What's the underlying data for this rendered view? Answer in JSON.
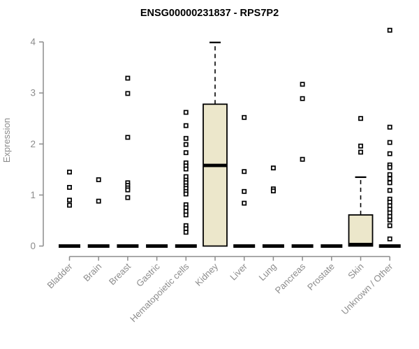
{
  "chart_data": {
    "type": "boxplot",
    "title": "ENSG00000231837 - RPS7P2",
    "ylabel": "Expression",
    "xlabel": "",
    "ylim": [
      0,
      4.3
    ],
    "y_ticks": [
      0,
      1,
      2,
      3,
      4
    ],
    "grid": false,
    "legend": "none",
    "colors": {
      "box_fill": "#ECE7CB",
      "box_stroke": "#000000",
      "axis": "#8C8C8C",
      "label": "#8C8C8C",
      "title": "#000000",
      "point_fill": "#FFFFFF"
    },
    "categories": [
      "Bladder",
      "Brain",
      "Breast",
      "Gastric",
      "Hematopoietic cells",
      "Kidney",
      "Liver",
      "Lung",
      "Pancreas",
      "Prostate",
      "Skin",
      "Unknown / Other"
    ],
    "series": [
      {
        "category": "Bladder",
        "box": {
          "q1": 0,
          "median": 0,
          "q3": 0,
          "whisker_high": 0
        },
        "points": [
          1.45,
          1.15,
          0.9,
          0.8
        ]
      },
      {
        "category": "Brain",
        "box": {
          "q1": 0,
          "median": 0,
          "q3": 0,
          "whisker_high": 0
        },
        "points": [
          1.3,
          0.88
        ]
      },
      {
        "category": "Breast",
        "box": {
          "q1": 0,
          "median": 0,
          "q3": 0,
          "whisker_high": 0
        },
        "points": [
          3.29,
          2.99,
          2.13,
          1.24,
          1.19,
          1.14,
          1.1,
          0.95
        ]
      },
      {
        "category": "Gastric",
        "box": {
          "q1": 0,
          "median": 0,
          "q3": 0,
          "whisker_high": 0
        },
        "points": []
      },
      {
        "category": "Hematopoietic cells",
        "box": {
          "q1": 0,
          "median": 0,
          "q3": 0,
          "whisker_high": 0
        },
        "points": [
          2.62,
          2.36,
          2.11,
          1.99,
          1.83,
          1.63,
          1.57,
          1.51,
          1.36,
          1.29,
          1.24,
          1.18,
          1.13,
          1.07,
          1.02,
          0.81,
          0.75,
          0.68,
          0.61,
          0.4,
          0.34,
          0.27
        ]
      },
      {
        "category": "Kidney",
        "box": {
          "q1": 0,
          "median": 1.58,
          "q3": 2.78,
          "whisker_high": 3.99
        },
        "points": []
      },
      {
        "category": "Liver",
        "box": {
          "q1": 0,
          "median": 0,
          "q3": 0,
          "whisker_high": 0
        },
        "points": [
          2.52,
          1.46,
          1.07,
          0.84
        ]
      },
      {
        "category": "Lung",
        "box": {
          "q1": 0,
          "median": 0,
          "q3": 0,
          "whisker_high": 0
        },
        "points": [
          1.53,
          1.12,
          1.08
        ]
      },
      {
        "category": "Pancreas",
        "box": {
          "q1": 0,
          "median": 0,
          "q3": 0,
          "whisker_high": 0
        },
        "points": [
          3.17,
          2.89,
          1.7
        ]
      },
      {
        "category": "Prostate",
        "box": {
          "q1": 0,
          "median": 0,
          "q3": 0,
          "whisker_high": 0
        },
        "points": []
      },
      {
        "category": "Skin",
        "box": {
          "q1": 0,
          "median": 0.03,
          "q3": 0.61,
          "whisker_high": 1.35
        },
        "points": [
          2.5,
          1.96,
          1.84
        ]
      },
      {
        "category": "Unknown / Other",
        "box": {
          "q1": 0,
          "median": 0,
          "q3": 0,
          "whisker_high": 0
        },
        "points": [
          4.23,
          2.33,
          2.03,
          1.81,
          1.59,
          1.54,
          1.4,
          1.32,
          1.24,
          1.09,
          0.92,
          0.86,
          0.79,
          0.72,
          0.65,
          0.58,
          0.51,
          0.4,
          0.14
        ]
      }
    ]
  }
}
